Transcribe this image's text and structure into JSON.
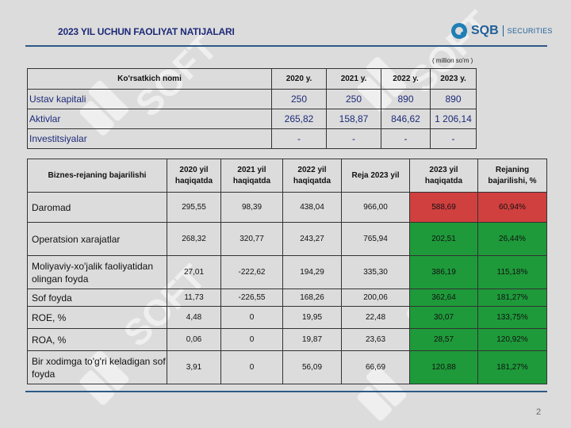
{
  "header": {
    "title": "2023 YIL UCHUN FAOLIYAT NATIJALARI",
    "logo_brand": "SQB",
    "logo_sub": "SECURITIES"
  },
  "unit_note": "( million so'm )",
  "page_number": "2",
  "watermark_text": "SOFT",
  "table1": {
    "headers": [
      "Ko'rsatkich nomi",
      "2020 y.",
      "2021 y.",
      "2022 y.",
      "2023 y."
    ],
    "rows": [
      {
        "label": "Ustav kapitali",
        "values": [
          "250",
          "250",
          "890",
          "890"
        ]
      },
      {
        "label": "Aktivlar",
        "values": [
          "265,82",
          "158,87",
          "846,62",
          "1 206,14"
        ]
      },
      {
        "label": "Investitsiyalar",
        "values": [
          "-",
          "-",
          "-",
          "-"
        ]
      }
    ]
  },
  "table2": {
    "headers": [
      "Biznes-rejaning bajarilishi",
      "2020 yil haqiqatda",
      "2021 yil haqiqatda",
      "2022 yil haqiqatda",
      "Reja 2023 yil",
      "2023 yil haqiqatda",
      "Rejaning bajarilishi, %"
    ],
    "status_colors": {
      "below_plan": "#d0403f",
      "above_plan": "#1e9a3a"
    },
    "rows": [
      {
        "label": "Daromad",
        "values": [
          "295,55",
          "98,39",
          "438,04",
          "966,00",
          "588,69",
          "60,94%"
        ],
        "status": "below_plan"
      },
      {
        "label": "Operatsion xarajatlar",
        "values": [
          "268,32",
          "320,77",
          "243,27",
          "765,94",
          "202,51",
          "26,44%"
        ],
        "status": "above_plan"
      },
      {
        "label": "Moliyaviy-xo'jalik faoliyatidan olingan foyda",
        "values": [
          "27,01",
          "-222,62",
          "194,29",
          "335,30",
          "386,19",
          "115,18%"
        ],
        "status": "above_plan"
      },
      {
        "label": "Sof foyda",
        "values": [
          "11,73",
          "-226,55",
          "168,26",
          "200,06",
          "362,64",
          "181,27%"
        ],
        "status": "above_plan"
      },
      {
        "label": "ROE, %",
        "values": [
          "4,48",
          "0",
          "19,95",
          "22,48",
          "30,07",
          "133,75%"
        ],
        "status": "above_plan"
      },
      {
        "label": "ROA, %",
        "values": [
          "0,06",
          "0",
          "19,87",
          "23,63",
          "28,57",
          "120,92%"
        ],
        "status": "above_plan"
      },
      {
        "label": "Bir xodimga to'g'ri keladigan sof foyda",
        "values": [
          "3,91",
          "0",
          "56,09",
          "66,69",
          "120,88",
          "181,27%"
        ],
        "status": "above_plan"
      }
    ]
  }
}
